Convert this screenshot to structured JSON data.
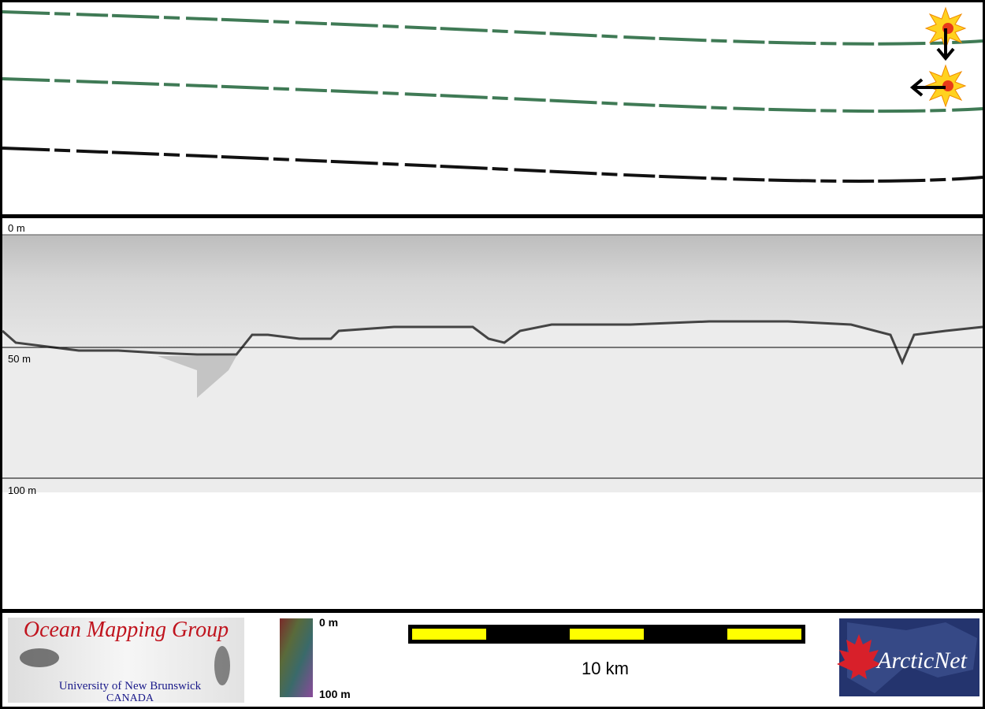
{
  "profile": {
    "depth_labels": [
      "0 m",
      "50 m",
      "100 m"
    ]
  },
  "footer": {
    "logo": {
      "title": "Ocean Mapping Group",
      "subtitle": "University of New Brunswick",
      "country": "CANADA"
    },
    "color_scale": {
      "top": "0 m",
      "bottom": "100 m"
    },
    "scale_bar": {
      "label": "10 km"
    },
    "partner_logo": "ArcticNet"
  }
}
